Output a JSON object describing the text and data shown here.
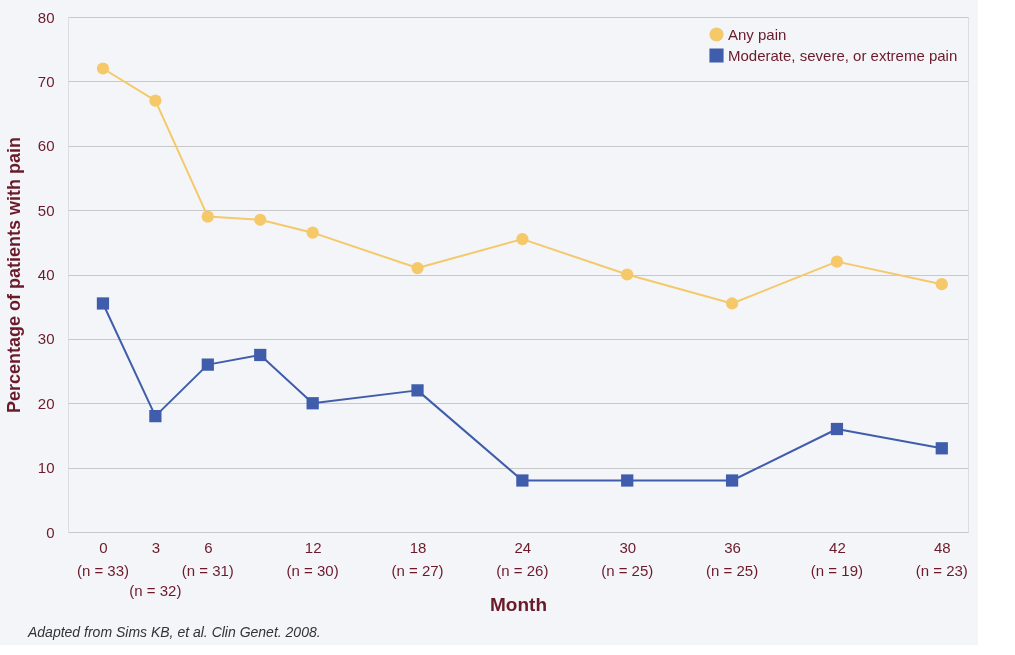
{
  "chart_data": {
    "type": "line",
    "xlabel": "Month",
    "ylabel": "Percentage of patients with pain",
    "x": [
      0,
      3,
      6,
      9,
      12,
      18,
      24,
      30,
      36,
      42,
      48
    ],
    "series": [
      {
        "name": "Any pain",
        "color": "#f5c96a",
        "marker": "circle",
        "values": [
          72,
          67,
          49,
          48.5,
          46.5,
          41,
          45.5,
          40,
          35.5,
          42,
          38.5
        ]
      },
      {
        "name": "Moderate, severe, or extreme pain",
        "color": "#3f5dab",
        "marker": "square",
        "values": [
          35.5,
          18,
          26,
          27.5,
          20,
          22,
          8,
          8,
          8,
          16,
          13
        ]
      }
    ],
    "xlim": [
      -2,
      49.5
    ],
    "xticks": [
      0,
      3,
      6,
      12,
      18,
      24,
      30,
      36,
      42,
      48
    ],
    "ylim": [
      0,
      80
    ],
    "yticks": [
      0,
      10,
      20,
      30,
      40,
      50,
      60,
      70,
      80
    ],
    "grid": "y",
    "legend": "top right",
    "line_style": "solid",
    "annotations": [
      "(n = 33)",
      "(n = 32)",
      "(n = 31)",
      "(n = 30)",
      "(n = 27)",
      "(n = 26)",
      "(n = 25)",
      "(n = 25)",
      "(n = 19)",
      "(n = 23)",
      "Adapted from Sims KB, et al. Clin Genet. 2008."
    ]
  }
}
